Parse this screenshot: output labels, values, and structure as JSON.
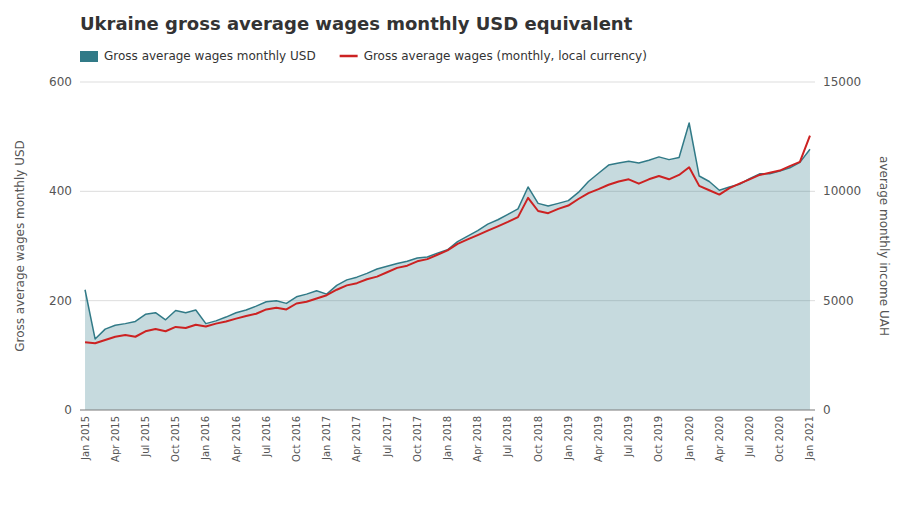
{
  "chart_data": {
    "type": "line",
    "title": "Ukraine gross average wages monthly USD equivalent",
    "ylabel": "Gross average wages monthly USD",
    "y2label": "average monthly income UAH",
    "categories": [
      "Jan 2015",
      null,
      null,
      "Apr 2015",
      null,
      null,
      "Jul 2015",
      null,
      null,
      "Oct 2015",
      null,
      null,
      "Jan 2016",
      null,
      null,
      "Apr 2016",
      null,
      null,
      "Jul 2016",
      null,
      null,
      "Oct 2016",
      null,
      null,
      "Jan 2017",
      null,
      null,
      "Apr 2017",
      null,
      null,
      "Jul 2017",
      null,
      null,
      "Oct 2017",
      null,
      null,
      "Jan 2018",
      null,
      null,
      "Apr 2018",
      null,
      null,
      "Jul 2018",
      null,
      null,
      "Oct 2018",
      null,
      null,
      "Jan 2019",
      null,
      null,
      "Apr 2019",
      null,
      null,
      "Jul 2019",
      null,
      null,
      "Oct 2019",
      null,
      null,
      "Jan 2020",
      null,
      null,
      "Apr 2020",
      null,
      null,
      "Jul 2020",
      null,
      null,
      "Oct 2020",
      null,
      null,
      "Jan 2021"
    ],
    "series": [
      {
        "name": "Gross average wages monthly USD",
        "type": "area",
        "color": "#317a87",
        "values": [
          220,
          130,
          148,
          155,
          158,
          162,
          175,
          178,
          165,
          182,
          178,
          183,
          158,
          163,
          170,
          178,
          183,
          190,
          198,
          200,
          195,
          207,
          212,
          218,
          212,
          228,
          238,
          243,
          250,
          258,
          263,
          268,
          272,
          278,
          280,
          287,
          293,
          308,
          318,
          328,
          340,
          348,
          358,
          368,
          408,
          378,
          373,
          378,
          383,
          398,
          418,
          433,
          448,
          452,
          455,
          452,
          457,
          463,
          458,
          462,
          525,
          428,
          418,
          402,
          408,
          413,
          423,
          432,
          432,
          437,
          443,
          453,
          477
        ]
      },
      {
        "name": "Gross average wages (monthly, local currency)",
        "type": "line",
        "color": "#cc2222",
        "axis": "y2",
        "values": [
          3100,
          3050,
          3200,
          3350,
          3430,
          3350,
          3600,
          3700,
          3600,
          3800,
          3750,
          3900,
          3820,
          3950,
          4050,
          4180,
          4300,
          4400,
          4600,
          4680,
          4600,
          4870,
          4950,
          5100,
          5250,
          5500,
          5700,
          5800,
          5980,
          6100,
          6300,
          6500,
          6600,
          6800,
          6900,
          7100,
          7300,
          7600,
          7800,
          8000,
          8200,
          8400,
          8600,
          8820,
          9700,
          9100,
          9000,
          9200,
          9350,
          9650,
          9920,
          10100,
          10300,
          10450,
          10550,
          10350,
          10550,
          10700,
          10550,
          10750,
          11100,
          10250,
          10050,
          9850,
          10150,
          10350,
          10550,
          10750,
          10850,
          10950,
          11150,
          11350,
          12550
        ]
      }
    ],
    "ylim": [
      0,
      600
    ],
    "yticks": [
      0,
      200,
      400,
      600
    ],
    "y2lim": [
      0,
      15000
    ],
    "y2ticks": [
      0,
      5000,
      10000,
      15000
    ],
    "grid": true,
    "legend": "top"
  }
}
